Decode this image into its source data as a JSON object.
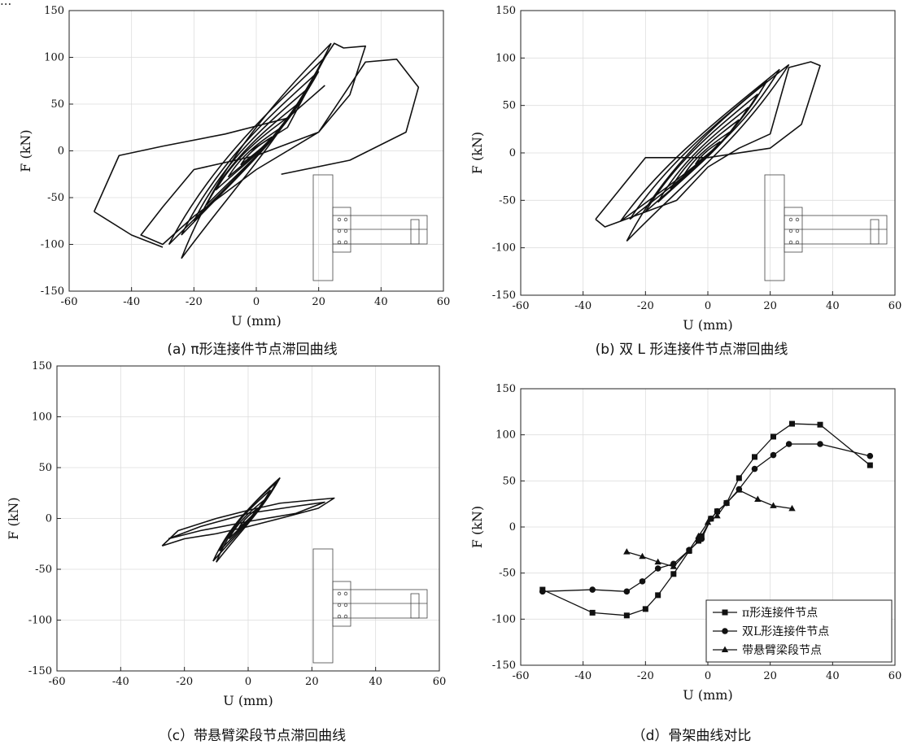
{
  "figure": {
    "top_fragment": "...",
    "captions": {
      "a": "(a) π形连接件节点滞回曲线",
      "b": "(b)  双 L 形连接件节点滞回曲线",
      "c": "（c）带悬臂梁段节点滞回曲线",
      "d": "（d）骨架曲线对比"
    }
  },
  "chart_data": [
    {
      "id": "a",
      "type": "line",
      "xlabel": "U (mm)",
      "ylabel": "F (kN)",
      "xlim": [
        -60,
        60
      ],
      "ylim": [
        -150,
        150
      ],
      "xticks": [
        -60,
        -40,
        -20,
        0,
        20,
        40,
        60
      ],
      "yticks": [
        -150,
        -100,
        -50,
        0,
        50,
        100,
        150
      ],
      "grid": true,
      "series": [
        {
          "loops": [
            [
              5,
              15
            ],
            [
              8,
              25
            ],
            [
              11,
              38
            ],
            [
              14,
              52
            ],
            [
              17,
              68
            ],
            [
              20,
              85
            ],
            [
              22,
              100
            ],
            [
              24,
              115
            ]
          ],
          "neg_loops": [
            [
              -5,
              -15
            ],
            [
              -9,
              -28
            ],
            [
              -13,
              -42
            ],
            [
              -16,
              -58
            ],
            [
              -20,
              -75
            ],
            [
              -24,
              -90
            ],
            [
              -28,
              -100
            ]
          ]
        },
        {
          "path": [
            [
              -2,
              0
            ],
            [
              10,
              25
            ],
            [
              22,
              100
            ],
            [
              25,
              115
            ],
            [
              28,
              110
            ],
            [
              35,
              112
            ],
            [
              30,
              60
            ],
            [
              20,
              20
            ],
            [
              0,
              -5
            ],
            [
              -20,
              -20
            ],
            [
              -30,
              -60
            ],
            [
              -37,
              -90
            ],
            [
              -30,
              -100
            ],
            [
              -20,
              -70
            ],
            [
              0,
              -20
            ],
            [
              20,
              20
            ],
            [
              35,
              95
            ],
            [
              45,
              98
            ],
            [
              52,
              68
            ],
            [
              48,
              20
            ],
            [
              30,
              -10
            ],
            [
              8,
              -25
            ]
          ]
        },
        {
          "path": [
            [
              -52,
              -65
            ],
            [
              -44,
              -5
            ],
            [
              -30,
              5
            ],
            [
              -10,
              18
            ],
            [
              10,
              35
            ],
            [
              22,
              70
            ]
          ]
        },
        {
          "path": [
            [
              -30,
              -103
            ],
            [
              -40,
              -90
            ],
            [
              -52,
              -65
            ]
          ]
        }
      ]
    },
    {
      "id": "b",
      "type": "line",
      "xlabel": "U (mm)",
      "ylabel": "F (kN)",
      "xlim": [
        -60,
        60
      ],
      "ylim": [
        -150,
        150
      ],
      "xticks": [
        -60,
        -40,
        -20,
        0,
        20,
        40,
        60
      ],
      "yticks": [
        -150,
        -100,
        -50,
        0,
        50,
        100,
        150
      ],
      "grid": true,
      "series": [
        {
          "loops": [
            [
              4,
              12
            ],
            [
              7,
              22
            ],
            [
              10,
              35
            ],
            [
              13,
              48
            ],
            [
              16,
              62
            ],
            [
              19,
              76
            ],
            [
              23,
              88
            ],
            [
              26,
              93
            ]
          ],
          "neg_loops": [
            [
              -4,
              -12
            ],
            [
              -8,
              -25
            ],
            [
              -12,
              -38
            ],
            [
              -16,
              -52
            ],
            [
              -20,
              -62
            ],
            [
              -25,
              -70
            ],
            [
              -28,
              -72
            ]
          ]
        },
        {
          "path": [
            [
              -36,
              -70
            ],
            [
              -33,
              -78
            ],
            [
              -28,
              -72
            ],
            [
              -10,
              -50
            ],
            [
              0,
              -15
            ],
            [
              10,
              5
            ],
            [
              20,
              20
            ],
            [
              26,
              90
            ],
            [
              33,
              96
            ],
            [
              36,
              92
            ],
            [
              30,
              30
            ],
            [
              20,
              5
            ],
            [
              0,
              -5
            ],
            [
              -20,
              -5
            ],
            [
              -36,
              -70
            ]
          ]
        }
      ]
    },
    {
      "id": "c",
      "type": "line",
      "xlabel": "U (mm)",
      "ylabel": "F (kN)",
      "xlim": [
        -60,
        60
      ],
      "ylim": [
        -150,
        150
      ],
      "xticks": [
        -60,
        -40,
        -20,
        0,
        20,
        40,
        60
      ],
      "yticks": [
        -150,
        -100,
        -50,
        0,
        50,
        100,
        150
      ],
      "grid": true,
      "series": [
        {
          "loops": [
            [
              3,
              10
            ],
            [
              5,
              18
            ],
            [
              7,
              28
            ],
            [
              9,
              36
            ],
            [
              10,
              40
            ]
          ],
          "neg_loops": [
            [
              -3,
              -10
            ],
            [
              -6,
              -20
            ],
            [
              -9,
              -32
            ],
            [
              -11,
              -42
            ],
            [
              -10,
              -43
            ]
          ]
        },
        {
          "path": [
            [
              -27,
              -27
            ],
            [
              -22,
              -12
            ],
            [
              -10,
              0
            ],
            [
              0,
              8
            ],
            [
              10,
              15
            ],
            [
              20,
              18
            ],
            [
              27,
              20
            ],
            [
              22,
              10
            ],
            [
              10,
              0
            ],
            [
              0,
              -8
            ],
            [
              -10,
              -15
            ],
            [
              -20,
              -20
            ],
            [
              -27,
              -27
            ]
          ]
        },
        {
          "path": [
            [
              -25,
              -20
            ],
            [
              -15,
              -8
            ],
            [
              0,
              5
            ],
            [
              15,
              12
            ],
            [
              24,
              16
            ],
            [
              15,
              5
            ],
            [
              0,
              -3
            ],
            [
              -15,
              -12
            ],
            [
              -25,
              -20
            ]
          ]
        }
      ]
    },
    {
      "id": "d",
      "type": "line",
      "xlabel": "U (mm)",
      "ylabel": "F (kN)",
      "xlim": [
        -60,
        60
      ],
      "ylim": [
        -150,
        150
      ],
      "xticks": [
        -60,
        -40,
        -20,
        0,
        20,
        40,
        60
      ],
      "yticks": [
        -150,
        -100,
        -50,
        0,
        50,
        100,
        150
      ],
      "grid": true,
      "legend_position": "bottom-right",
      "series": [
        {
          "name": "π形连接件节点",
          "marker": "square",
          "x": [
            -53,
            -37,
            -26,
            -20,
            -16,
            -11,
            -6,
            -3,
            -2,
            1,
            3,
            6,
            10,
            15,
            21,
            27,
            36,
            52
          ],
          "y": [
            -68,
            -93,
            -96,
            -89,
            -74,
            -51,
            -26,
            -15,
            -10,
            9,
            17,
            26,
            53,
            76,
            98,
            112,
            111,
            67
          ]
        },
        {
          "name": "双L形连接件节点",
          "marker": "circle",
          "x": [
            -53,
            -37,
            -26,
            -21,
            -16,
            -11,
            -6,
            -2,
            1,
            3,
            6,
            10,
            15,
            21,
            26,
            36,
            52
          ],
          "y": [
            -70,
            -68,
            -70,
            -59,
            -45,
            -40,
            -25,
            -13,
            9,
            17,
            26,
            41,
            63,
            78,
            90,
            90,
            77
          ]
        },
        {
          "name": "带悬臂梁段节点",
          "marker": "triangle",
          "x": [
            -26,
            -21,
            -16,
            -11,
            -6,
            -3,
            0,
            3,
            6,
            10,
            16,
            21,
            27
          ],
          "y": [
            -27,
            -32,
            -38,
            -43,
            -25,
            -10,
            5,
            12,
            26,
            40,
            30,
            23,
            20
          ]
        }
      ]
    }
  ]
}
